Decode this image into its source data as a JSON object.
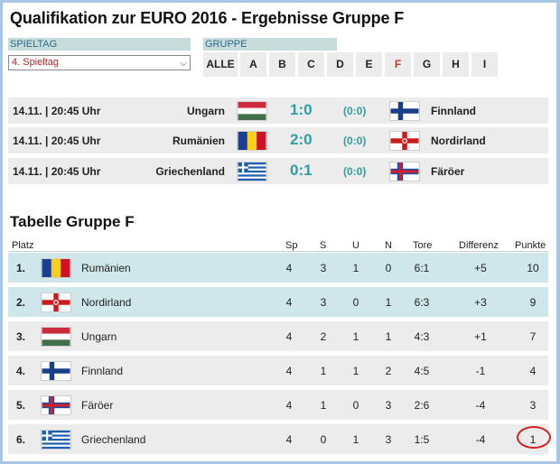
{
  "page": {
    "title": "Qualifikation zur EURO 2016 - Ergebnisse Gruppe F"
  },
  "spieltag": {
    "label": "SPIELTAG",
    "selected": "4. Spieltag"
  },
  "gruppe": {
    "label": "GRUPPE",
    "buttons": [
      "ALLE",
      "A",
      "B",
      "C",
      "D",
      "E",
      "F",
      "G",
      "H",
      "I"
    ],
    "active": "F"
  },
  "matches": [
    {
      "datetime": "14.11. | 20:45 Uhr",
      "home": "Ungarn",
      "home_flag": "flag-hungary-icon",
      "score": "1:0",
      "halftime": "(0:0)",
      "away": "Finnland",
      "away_flag": "flag-finland-icon"
    },
    {
      "datetime": "14.11. | 20:45 Uhr",
      "home": "Rumänien",
      "home_flag": "flag-romania-icon",
      "score": "2:0",
      "halftime": "(0:0)",
      "away": "Nordirland",
      "away_flag": "flag-northern-ireland-icon"
    },
    {
      "datetime": "14.11. | 20:45 Uhr",
      "home": "Griechenland",
      "home_flag": "flag-greece-icon",
      "score": "0:1",
      "halftime": "(0:0)",
      "away": "Färöer",
      "away_flag": "flag-faroe-icon"
    }
  ],
  "table": {
    "title": "Tabelle Gruppe F",
    "headers": {
      "platz": "Platz",
      "sp": "Sp",
      "s": "S",
      "u": "U",
      "n": "N",
      "tore": "Tore",
      "diff": "Differenz",
      "punkte": "Punkte"
    },
    "rows": [
      {
        "pos": "1.",
        "team": "Rumänien",
        "flag": "flag-romania-icon",
        "sp": "4",
        "s": "3",
        "u": "1",
        "n": "0",
        "tore": "6:1",
        "diff": "+5",
        "punkte": "10"
      },
      {
        "pos": "2.",
        "team": "Nordirland",
        "flag": "flag-northern-ireland-icon",
        "sp": "4",
        "s": "3",
        "u": "0",
        "n": "1",
        "tore": "6:3",
        "diff": "+3",
        "punkte": "9"
      },
      {
        "pos": "3.",
        "team": "Ungarn",
        "flag": "flag-hungary-icon",
        "sp": "4",
        "s": "2",
        "u": "1",
        "n": "1",
        "tore": "4:3",
        "diff": "+1",
        "punkte": "7"
      },
      {
        "pos": "4.",
        "team": "Finnland",
        "flag": "flag-finland-icon",
        "sp": "4",
        "s": "1",
        "u": "1",
        "n": "2",
        "tore": "4:5",
        "diff": "-1",
        "punkte": "4"
      },
      {
        "pos": "5.",
        "team": "Färöer",
        "flag": "flag-faroe-icon",
        "sp": "4",
        "s": "1",
        "u": "0",
        "n": "3",
        "tore": "2:6",
        "diff": "-4",
        "punkte": "3"
      },
      {
        "pos": "6.",
        "team": "Griechenland",
        "flag": "flag-greece-icon",
        "sp": "4",
        "s": "0",
        "u": "1",
        "n": "3",
        "tore": "1:5",
        "diff": "-4",
        "punkte": "1"
      }
    ]
  },
  "colors": {
    "accent": "#2f9fa0",
    "active_group": "#c0392b",
    "highlight_row": "#cfe7ea",
    "annotation_circle": "#d81e1e"
  }
}
